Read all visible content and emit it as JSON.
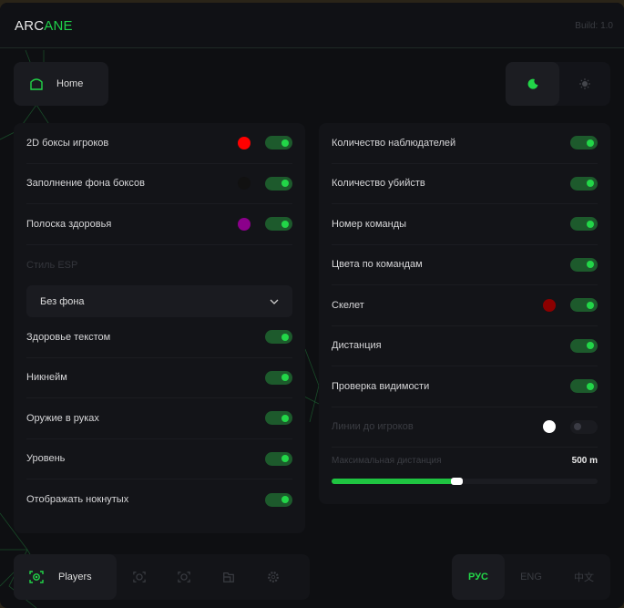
{
  "header": {
    "logo_a": "ARC",
    "logo_b": "ANE",
    "build": "Build: 1.0"
  },
  "top": {
    "home_label": "Home",
    "theme_active": "moon-icon",
    "theme_inactive": "sun-icon"
  },
  "colors": {
    "accent": "#22d648",
    "toggle_on": "#1d5a2c"
  },
  "left": {
    "rows_a": [
      {
        "label": "2D боксы игроков",
        "color": "#ff0000",
        "on": true
      },
      {
        "label": "Заполнение фона боксов",
        "color": "#111111",
        "on": true
      },
      {
        "label": "Полоска здоровья",
        "color": "#8b008b",
        "on": true
      }
    ],
    "esp_label": "Стиль ESP",
    "esp_value": "Без фона",
    "rows_b": [
      {
        "label": "Здоровье текстом",
        "on": true
      },
      {
        "label": "Никнейм",
        "on": true
      },
      {
        "label": "Оружие в руках",
        "on": true
      },
      {
        "label": "Уровень",
        "on": true
      },
      {
        "label": "Отображать нокнутых",
        "on": true
      }
    ]
  },
  "right": {
    "rows": [
      {
        "label": "Количество наблюдателей",
        "on": true
      },
      {
        "label": "Количество убийств",
        "on": true
      },
      {
        "label": "Номер команды",
        "on": true
      },
      {
        "label": "Цвета по командам",
        "on": true
      },
      {
        "label": "Скелет",
        "color": "#8b0000",
        "on": true
      },
      {
        "label": "Дистанция",
        "on": true
      },
      {
        "label": "Проверка видимости",
        "on": true
      },
      {
        "label": "Линии до игроков",
        "color": "#ffffff",
        "on": false,
        "disabled": true
      }
    ],
    "slider": {
      "label": "Максимальная дистанция",
      "value": "500 m",
      "fraction": 0.47
    }
  },
  "nav": {
    "active_label": "Players",
    "icons": [
      "aim-icon",
      "aim-alt-icon",
      "folder-icon",
      "gear-icon"
    ]
  },
  "lang": {
    "items": [
      "РУС",
      "ENG",
      "中文"
    ],
    "active": 0
  }
}
